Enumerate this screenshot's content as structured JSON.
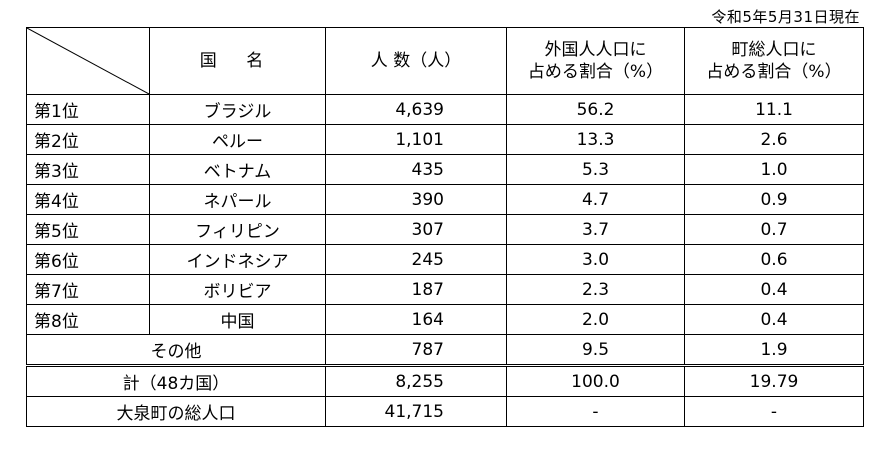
{
  "date_note": "令和5年5月31日現在",
  "headers": {
    "country": "国 名",
    "population": "人 数（人）",
    "ratio_foreign_line1": "外国人人口に",
    "ratio_foreign_line2": "占める割合（%）",
    "ratio_town_line1": "町総人口に",
    "ratio_town_line2": "占める割合（%）"
  },
  "rows": [
    {
      "rank": "第1位",
      "country": "ブラジル",
      "people": "4,639",
      "foreign_pct": "56.2",
      "town_pct": "11.1"
    },
    {
      "rank": "第2位",
      "country": "ペルー",
      "people": "1,101",
      "foreign_pct": "13.3",
      "town_pct": "2.6"
    },
    {
      "rank": "第3位",
      "country": "ベトナム",
      "people": "435",
      "foreign_pct": "5.3",
      "town_pct": "1.0"
    },
    {
      "rank": "第4位",
      "country": "ネパール",
      "people": "390",
      "foreign_pct": "4.7",
      "town_pct": "0.9"
    },
    {
      "rank": "第5位",
      "country": "フィリピン",
      "people": "307",
      "foreign_pct": "3.7",
      "town_pct": "0.7"
    },
    {
      "rank": "第6位",
      "country": "インドネシア",
      "people": "245",
      "foreign_pct": "3.0",
      "town_pct": "0.6"
    },
    {
      "rank": "第7位",
      "country": "ボリビア",
      "people": "187",
      "foreign_pct": "2.3",
      "town_pct": "0.4"
    },
    {
      "rank": "第8位",
      "country": "中国",
      "people": "164",
      "foreign_pct": "2.0",
      "town_pct": "0.4"
    }
  ],
  "others": {
    "label": "その他",
    "people": "787",
    "foreign_pct": "9.5",
    "town_pct": "1.9"
  },
  "total": {
    "label": "計（48カ国）",
    "people": "8,255",
    "foreign_pct": "100.0",
    "town_pct": "19.79"
  },
  "town_total": {
    "label": "大泉町の総人口",
    "people": "41,715",
    "foreign_pct": "-",
    "town_pct": "-"
  }
}
